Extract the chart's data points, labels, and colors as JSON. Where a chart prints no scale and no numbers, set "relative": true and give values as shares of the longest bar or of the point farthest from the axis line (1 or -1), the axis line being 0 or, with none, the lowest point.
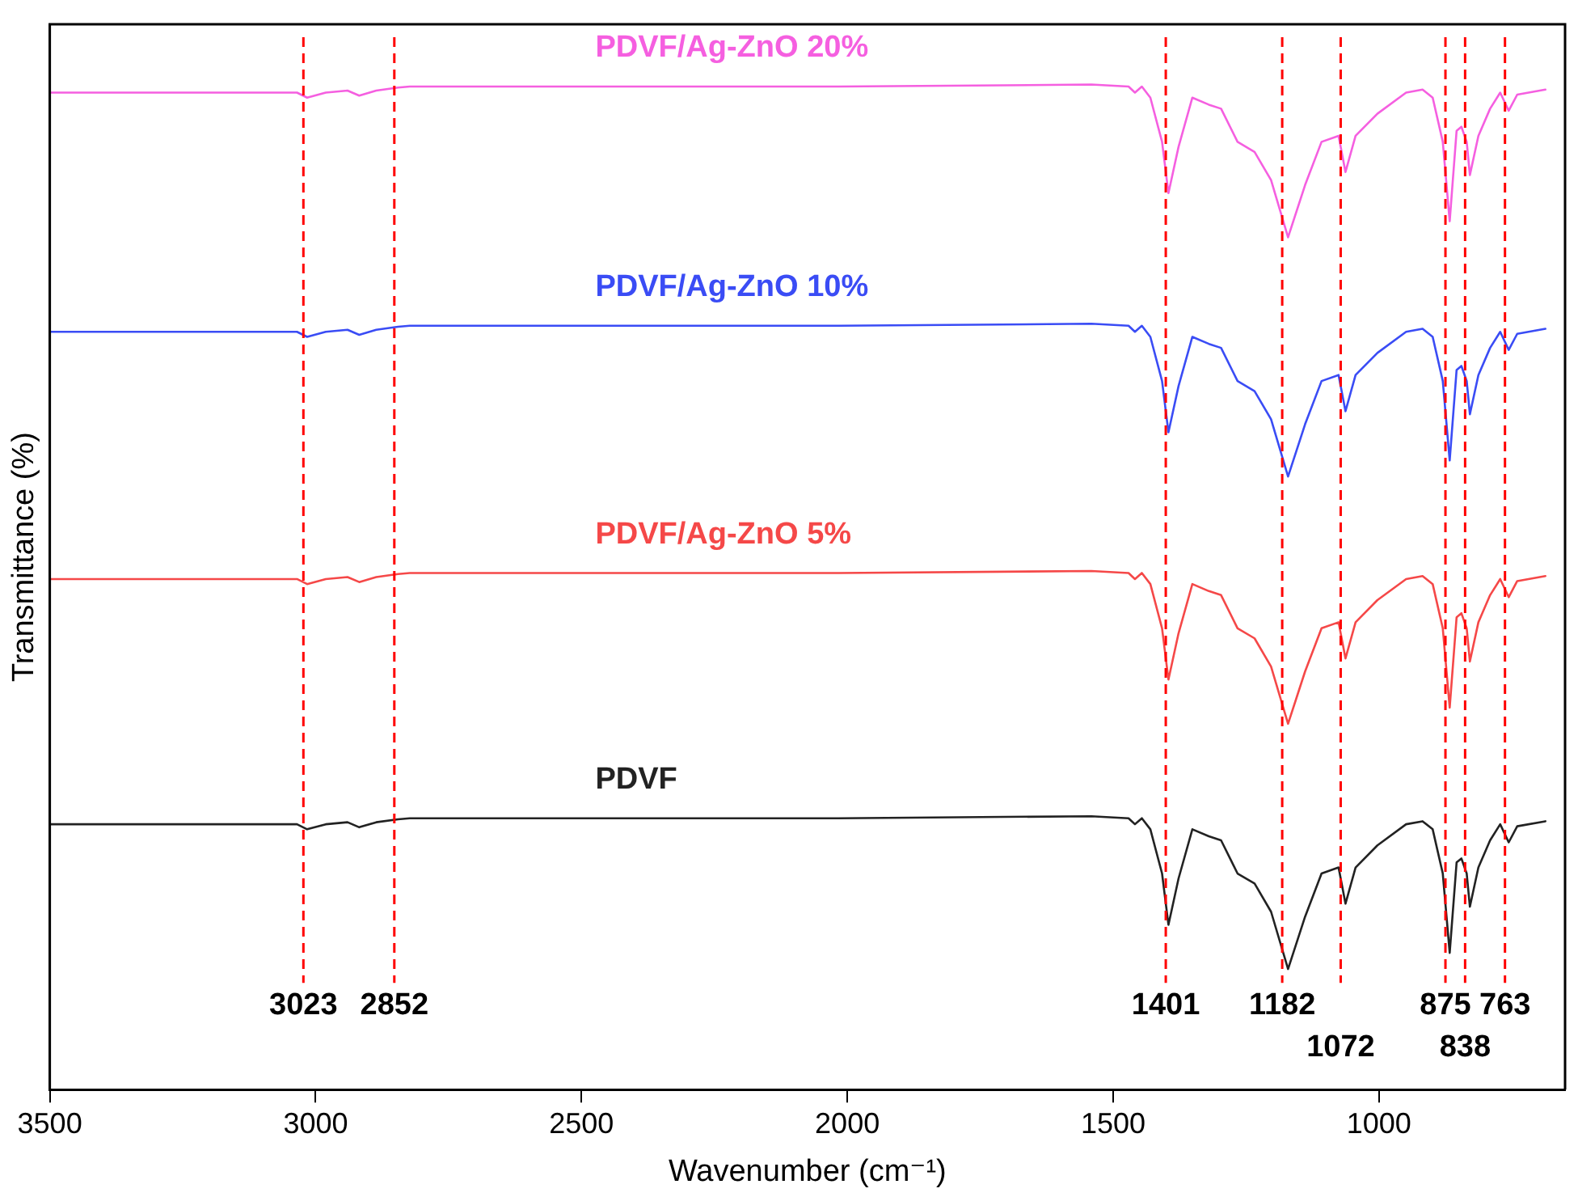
{
  "chart_data": {
    "type": "line",
    "relative": true,
    "xlabel": "Wavenumber (cm⁻¹)",
    "ylabel": "Transmittance (%)",
    "xlim": [
      3500,
      650
    ],
    "xticks": [
      3500,
      3000,
      2500,
      2000,
      1500,
      1000
    ],
    "grid": false,
    "legend": false,
    "marker": "none",
    "line_style": "solid",
    "x": [
      3500,
      3123,
      3035,
      3016,
      2981,
      2940,
      2918,
      2886,
      2845,
      2823,
      2490,
      2016,
      1541,
      1471,
      1459,
      1446,
      1430,
      1408,
      1396,
      1377,
      1351,
      1320,
      1297,
      1266,
      1234,
      1203,
      1171,
      1139,
      1108,
      1076,
      1063,
      1044,
      1003,
      949,
      918,
      899,
      880,
      867,
      854,
      845,
      835,
      829,
      813,
      791,
      772,
      756,
      740,
      687
    ],
    "series": [
      {
        "name": "PDVF/Ag-ZnO 20%",
        "color": "#f55fe0",
        "values": [
          0.992,
          0.992,
          0.992,
          0.987,
          0.992,
          0.994,
          0.989,
          0.994,
          0.997,
          0.998,
          0.998,
          0.998,
          1.0,
          0.998,
          0.992,
          0.998,
          0.987,
          0.943,
          0.892,
          0.938,
          0.987,
          0.98,
          0.976,
          0.943,
          0.933,
          0.905,
          0.848,
          0.9,
          0.943,
          0.949,
          0.913,
          0.949,
          0.971,
          0.992,
          0.995,
          0.987,
          0.943,
          0.864,
          0.954,
          0.958,
          0.943,
          0.91,
          0.949,
          0.976,
          0.992,
          0.974,
          0.99,
          0.995
        ]
      },
      {
        "name": "PDVF/Ag-ZnO 10%",
        "color": "#3a4cf5",
        "values": [
          0.754,
          0.754,
          0.754,
          0.749,
          0.754,
          0.756,
          0.751,
          0.756,
          0.759,
          0.76,
          0.76,
          0.76,
          0.762,
          0.76,
          0.754,
          0.76,
          0.749,
          0.705,
          0.654,
          0.7,
          0.749,
          0.742,
          0.738,
          0.705,
          0.695,
          0.667,
          0.61,
          0.662,
          0.705,
          0.711,
          0.675,
          0.711,
          0.733,
          0.754,
          0.757,
          0.749,
          0.705,
          0.626,
          0.716,
          0.72,
          0.705,
          0.672,
          0.711,
          0.738,
          0.754,
          0.736,
          0.752,
          0.757
        ]
      },
      {
        "name": "PDVF/Ag-ZnO 5%",
        "color": "#f54848",
        "values": [
          0.508,
          0.508,
          0.508,
          0.503,
          0.508,
          0.51,
          0.505,
          0.51,
          0.513,
          0.514,
          0.514,
          0.514,
          0.516,
          0.514,
          0.508,
          0.514,
          0.503,
          0.459,
          0.408,
          0.454,
          0.503,
          0.496,
          0.492,
          0.459,
          0.449,
          0.421,
          0.364,
          0.416,
          0.459,
          0.465,
          0.429,
          0.465,
          0.487,
          0.508,
          0.511,
          0.503,
          0.459,
          0.38,
          0.47,
          0.474,
          0.459,
          0.426,
          0.465,
          0.492,
          0.508,
          0.49,
          0.506,
          0.511
        ]
      },
      {
        "name": "PDVF",
        "color": "#222222",
        "values": [
          0.264,
          0.264,
          0.264,
          0.259,
          0.264,
          0.266,
          0.261,
          0.266,
          0.269,
          0.27,
          0.27,
          0.27,
          0.272,
          0.27,
          0.264,
          0.27,
          0.259,
          0.215,
          0.164,
          0.21,
          0.259,
          0.252,
          0.248,
          0.215,
          0.205,
          0.177,
          0.12,
          0.172,
          0.215,
          0.221,
          0.185,
          0.221,
          0.243,
          0.264,
          0.267,
          0.259,
          0.215,
          0.136,
          0.226,
          0.23,
          0.215,
          0.182,
          0.221,
          0.248,
          0.264,
          0.246,
          0.262,
          0.267
        ]
      }
    ],
    "ref_lines": [
      {
        "axis": "x",
        "value": 3023,
        "label": "3023",
        "color": "#ff0000",
        "line_style": "dashed"
      },
      {
        "axis": "x",
        "value": 2852,
        "label": "2852",
        "color": "#ff0000",
        "line_style": "dashed"
      },
      {
        "axis": "x",
        "value": 1401,
        "label": "1401",
        "color": "#ff0000",
        "line_style": "dashed"
      },
      {
        "axis": "x",
        "value": 1182,
        "label": "1182",
        "color": "#ff0000",
        "line_style": "dashed"
      },
      {
        "axis": "x",
        "value": 1072,
        "label": "1072",
        "color": "#ff0000",
        "line_style": "dashed"
      },
      {
        "axis": "x",
        "value": 875,
        "label": "875",
        "color": "#ff0000",
        "line_style": "dashed"
      },
      {
        "axis": "x",
        "value": 838,
        "label": "838",
        "color": "#ff0000",
        "line_style": "dashed"
      },
      {
        "axis": "x",
        "value": 763,
        "label": "763",
        "color": "#ff0000",
        "line_style": "dashed"
      }
    ]
  }
}
